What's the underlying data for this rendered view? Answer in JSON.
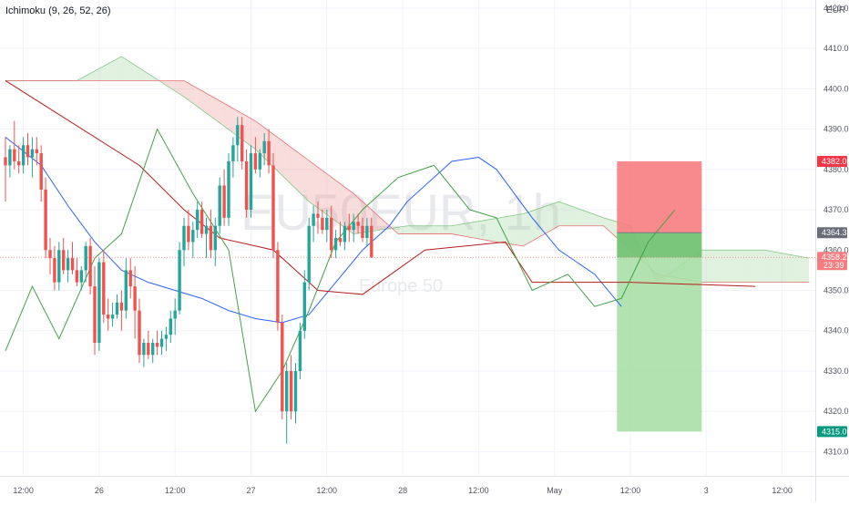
{
  "indicator": {
    "label": "Ichimoku (9, 26, 52, 26)"
  },
  "watermark": {
    "symbol": "EU50EUR, 1h",
    "description": "Europe 50"
  },
  "currency": "EUR",
  "colors": {
    "up": "#26a69a",
    "down": "#ef5350",
    "tenkan": "#2962ff",
    "kijun": "#b71c1c",
    "chikou": "#43a047",
    "cloud_bull": "#a5d6a7",
    "cloud_bear": "#ef9a9a",
    "stop_zone": "#f77c80",
    "target_zone": "#a9dfa6",
    "grid": "#f0f3fa"
  },
  "chart_data": {
    "type": "candlestick",
    "ylim": [
      4304,
      4422
    ],
    "y_ticks": [
      "4310.0",
      "4320.0",
      "4330.0",
      "4340.0",
      "4350.0",
      "4360.0",
      "4370.0",
      "4380.0",
      "4390.0",
      "4400.0",
      "4410.0",
      "4420.0"
    ],
    "x_ticks": [
      "12:00",
      "26",
      "12:00",
      "27",
      "12:00",
      "28",
      "12:00",
      "May",
      "12:00",
      "3",
      "12:00"
    ],
    "price_badges": [
      {
        "label": "4382.0",
        "value": 4382.0,
        "color": "#f23645"
      },
      {
        "label": "4364.3",
        "value": 4364.3,
        "color": "#6a6d78"
      },
      {
        "label": "4358.2",
        "sub": "23:39",
        "value": 4358.2,
        "color": "#f77c80"
      },
      {
        "label": "4315.0",
        "value": 4315.0,
        "color": "#089981"
      }
    ],
    "current_price": 4358.2,
    "candles": [
      {
        "o": 4383,
        "h": 4388,
        "l": 4372,
        "c": 4381
      },
      {
        "o": 4381,
        "h": 4386,
        "l": 4378,
        "c": 4385
      },
      {
        "o": 4385,
        "h": 4392,
        "l": 4380,
        "c": 4382
      },
      {
        "o": 4382,
        "h": 4386,
        "l": 4379,
        "c": 4381
      },
      {
        "o": 4381,
        "h": 4388,
        "l": 4379,
        "c": 4386
      },
      {
        "o": 4386,
        "h": 4389,
        "l": 4381,
        "c": 4383
      },
      {
        "o": 4383,
        "h": 4388,
        "l": 4378,
        "c": 4385
      },
      {
        "o": 4385,
        "h": 4388,
        "l": 4381,
        "c": 4384
      },
      {
        "o": 4384,
        "h": 4386,
        "l": 4372,
        "c": 4375
      },
      {
        "o": 4375,
        "h": 4378,
        "l": 4358,
        "c": 4360
      },
      {
        "o": 4360,
        "h": 4363,
        "l": 4354,
        "c": 4358
      },
      {
        "o": 4358,
        "h": 4361,
        "l": 4350,
        "c": 4352
      },
      {
        "o": 4352,
        "h": 4362,
        "l": 4350,
        "c": 4360
      },
      {
        "o": 4360,
        "h": 4363,
        "l": 4354,
        "c": 4355
      },
      {
        "o": 4355,
        "h": 4360,
        "l": 4352,
        "c": 4358
      },
      {
        "o": 4358,
        "h": 4362,
        "l": 4354,
        "c": 4355
      },
      {
        "o": 4355,
        "h": 4358,
        "l": 4351,
        "c": 4352
      },
      {
        "o": 4352,
        "h": 4356,
        "l": 4350,
        "c": 4355
      },
      {
        "o": 4355,
        "h": 4362,
        "l": 4352,
        "c": 4361
      },
      {
        "o": 4361,
        "h": 4363,
        "l": 4349,
        "c": 4351
      },
      {
        "o": 4351,
        "h": 4356,
        "l": 4334,
        "c": 4337
      },
      {
        "o": 4337,
        "h": 4358,
        "l": 4335,
        "c": 4357
      },
      {
        "o": 4357,
        "h": 4360,
        "l": 4342,
        "c": 4344
      },
      {
        "o": 4344,
        "h": 4348,
        "l": 4340,
        "c": 4343
      },
      {
        "o": 4343,
        "h": 4347,
        "l": 4341,
        "c": 4344
      },
      {
        "o": 4344,
        "h": 4349,
        "l": 4343,
        "c": 4347
      },
      {
        "o": 4347,
        "h": 4350,
        "l": 4340,
        "c": 4345
      },
      {
        "o": 4345,
        "h": 4358,
        "l": 4343,
        "c": 4355
      },
      {
        "o": 4355,
        "h": 4358,
        "l": 4348,
        "c": 4351
      },
      {
        "o": 4351,
        "h": 4356,
        "l": 4338,
        "c": 4345
      },
      {
        "o": 4345,
        "h": 4348,
        "l": 4332,
        "c": 4334
      },
      {
        "o": 4334,
        "h": 4338,
        "l": 4331,
        "c": 4337
      },
      {
        "o": 4337,
        "h": 4340,
        "l": 4333,
        "c": 4334
      },
      {
        "o": 4334,
        "h": 4338,
        "l": 4332,
        "c": 4337
      },
      {
        "o": 4337,
        "h": 4340,
        "l": 4334,
        "c": 4336
      },
      {
        "o": 4336,
        "h": 4340,
        "l": 4334,
        "c": 4338
      },
      {
        "o": 4338,
        "h": 4341,
        "l": 4335,
        "c": 4339
      },
      {
        "o": 4339,
        "h": 4345,
        "l": 4337,
        "c": 4343
      },
      {
        "o": 4343,
        "h": 4348,
        "l": 4339,
        "c": 4345
      },
      {
        "o": 4345,
        "h": 4362,
        "l": 4344,
        "c": 4360
      },
      {
        "o": 4360,
        "h": 4368,
        "l": 4356,
        "c": 4366
      },
      {
        "o": 4366,
        "h": 4370,
        "l": 4360,
        "c": 4362
      },
      {
        "o": 4362,
        "h": 4367,
        "l": 4358,
        "c": 4365
      },
      {
        "o": 4365,
        "h": 4372,
        "l": 4363,
        "c": 4370
      },
      {
        "o": 4370,
        "h": 4372,
        "l": 4363,
        "c": 4364
      },
      {
        "o": 4364,
        "h": 4368,
        "l": 4358,
        "c": 4366
      },
      {
        "o": 4366,
        "h": 4370,
        "l": 4358,
        "c": 4360
      },
      {
        "o": 4360,
        "h": 4368,
        "l": 4356,
        "c": 4366
      },
      {
        "o": 4366,
        "h": 4378,
        "l": 4364,
        "c": 4376
      },
      {
        "o": 4376,
        "h": 4380,
        "l": 4366,
        "c": 4368
      },
      {
        "o": 4368,
        "h": 4384,
        "l": 4366,
        "c": 4382
      },
      {
        "o": 4382,
        "h": 4388,
        "l": 4378,
        "c": 4386
      },
      {
        "o": 4386,
        "h": 4393,
        "l": 4382,
        "c": 4391
      },
      {
        "o": 4391,
        "h": 4393,
        "l": 4380,
        "c": 4382
      },
      {
        "o": 4382,
        "h": 4385,
        "l": 4368,
        "c": 4370
      },
      {
        "o": 4370,
        "h": 4386,
        "l": 4368,
        "c": 4384
      },
      {
        "o": 4384,
        "h": 4388,
        "l": 4379,
        "c": 4380
      },
      {
        "o": 4380,
        "h": 4385,
        "l": 4378,
        "c": 4384
      },
      {
        "o": 4384,
        "h": 4389,
        "l": 4381,
        "c": 4387
      },
      {
        "o": 4387,
        "h": 4390,
        "l": 4379,
        "c": 4381
      },
      {
        "o": 4381,
        "h": 4384,
        "l": 4358,
        "c": 4360
      },
      {
        "o": 4360,
        "h": 4362,
        "l": 4340,
        "c": 4342
      },
      {
        "o": 4342,
        "h": 4344,
        "l": 4318,
        "c": 4320
      },
      {
        "o": 4320,
        "h": 4332,
        "l": 4312,
        "c": 4330
      },
      {
        "o": 4330,
        "h": 4334,
        "l": 4318,
        "c": 4320
      },
      {
        "o": 4320,
        "h": 4332,
        "l": 4317,
        "c": 4330
      },
      {
        "o": 4330,
        "h": 4342,
        "l": 4328,
        "c": 4340
      },
      {
        "o": 4340,
        "h": 4355,
        "l": 4338,
        "c": 4352
      },
      {
        "o": 4352,
        "h": 4368,
        "l": 4350,
        "c": 4366
      },
      {
        "o": 4366,
        "h": 4371,
        "l": 4362,
        "c": 4369
      },
      {
        "o": 4369,
        "h": 4372,
        "l": 4364,
        "c": 4368
      },
      {
        "o": 4368,
        "h": 4370,
        "l": 4364,
        "c": 4365
      },
      {
        "o": 4365,
        "h": 4370,
        "l": 4362,
        "c": 4368
      },
      {
        "o": 4368,
        "h": 4371,
        "l": 4358,
        "c": 4360
      },
      {
        "o": 4360,
        "h": 4365,
        "l": 4358,
        "c": 4363
      },
      {
        "o": 4363,
        "h": 4367,
        "l": 4361,
        "c": 4362
      },
      {
        "o": 4362,
        "h": 4367,
        "l": 4360,
        "c": 4366
      },
      {
        "o": 4366,
        "h": 4369,
        "l": 4362,
        "c": 4365
      },
      {
        "o": 4365,
        "h": 4369,
        "l": 4362,
        "c": 4367
      },
      {
        "o": 4367,
        "h": 4369,
        "l": 4364,
        "c": 4366
      },
      {
        "o": 4366,
        "h": 4368,
        "l": 4362,
        "c": 4363
      },
      {
        "o": 4363,
        "h": 4368,
        "l": 4361,
        "c": 4366
      },
      {
        "o": 4366,
        "h": 4368,
        "l": 4358,
        "c": 4358.2
      }
    ],
    "tenkan": [
      [
        0,
        4388
      ],
      [
        8,
        4381
      ],
      [
        14,
        4371
      ],
      [
        20,
        4362
      ],
      [
        26,
        4355
      ],
      [
        32,
        4352
      ],
      [
        38,
        4350
      ],
      [
        44,
        4348
      ],
      [
        50,
        4345
      ],
      [
        56,
        4343
      ],
      [
        62,
        4342
      ],
      [
        68,
        4344
      ],
      [
        74,
        4352
      ],
      [
        80,
        4360
      ],
      [
        86,
        4366
      ],
      [
        90,
        4372
      ],
      [
        96,
        4378
      ],
      [
        100,
        4382
      ],
      [
        106,
        4383
      ],
      [
        110,
        4380
      ],
      [
        114,
        4374
      ],
      [
        118,
        4368
      ],
      [
        124,
        4360
      ],
      [
        132,
        4354
      ],
      [
        138,
        4346
      ]
    ],
    "kijun": [
      [
        0,
        4402
      ],
      [
        30,
        4381
      ],
      [
        40,
        4370
      ],
      [
        48,
        4363
      ],
      [
        60,
        4360
      ],
      [
        70,
        4350
      ],
      [
        80,
        4349
      ],
      [
        94,
        4360
      ],
      [
        112,
        4362
      ],
      [
        118,
        4352
      ],
      [
        140,
        4352
      ],
      [
        168,
        4351
      ]
    ],
    "chikou": [
      [
        0,
        4335
      ],
      [
        6,
        4351
      ],
      [
        12,
        4338
      ],
      [
        20,
        4358
      ],
      [
        26,
        4364
      ],
      [
        34,
        4390
      ],
      [
        42,
        4374
      ],
      [
        50,
        4360
      ],
      [
        56,
        4320
      ],
      [
        62,
        4330
      ],
      [
        68,
        4345
      ],
      [
        74,
        4362
      ],
      [
        80,
        4370
      ],
      [
        88,
        4378
      ],
      [
        96,
        4381
      ],
      [
        104,
        4370
      ],
      [
        110,
        4368
      ],
      [
        118,
        4350
      ],
      [
        126,
        4354
      ],
      [
        132,
        4346
      ],
      [
        138,
        4348
      ],
      [
        144,
        4362
      ],
      [
        150,
        4370
      ]
    ],
    "senkou_a": [
      [
        0,
        4402
      ],
      [
        16,
        4402
      ],
      [
        26,
        4408
      ],
      [
        40,
        4398
      ],
      [
        56,
        4385
      ],
      [
        68,
        4372
      ],
      [
        78,
        4364
      ],
      [
        90,
        4366
      ],
      [
        100,
        4366
      ],
      [
        116,
        4369
      ],
      [
        124,
        4372
      ],
      [
        134,
        4368
      ],
      [
        140,
        4366
      ],
      [
        146,
        4352
      ],
      [
        156,
        4360
      ],
      [
        170,
        4360
      ],
      [
        180,
        4358
      ]
    ],
    "senkou_b": [
      [
        0,
        4402
      ],
      [
        40,
        4402
      ],
      [
        56,
        4392
      ],
      [
        78,
        4374
      ],
      [
        88,
        4364
      ],
      [
        100,
        4364
      ],
      [
        110,
        4362
      ],
      [
        116,
        4361
      ],
      [
        124,
        4366
      ],
      [
        134,
        4366
      ],
      [
        140,
        4360
      ],
      [
        146,
        4354
      ],
      [
        156,
        4352
      ],
      [
        170,
        4352
      ],
      [
        180,
        4352
      ]
    ],
    "position": {
      "entry_index": 137,
      "end_index": 156,
      "entry": 4364.3,
      "stop": 4382.0,
      "target": 4315.0
    },
    "x_tick_indices": [
      4,
      21,
      38,
      55,
      72,
      89,
      106,
      123,
      140,
      157,
      174
    ],
    "grid": true,
    "legend_position": "top-left"
  }
}
